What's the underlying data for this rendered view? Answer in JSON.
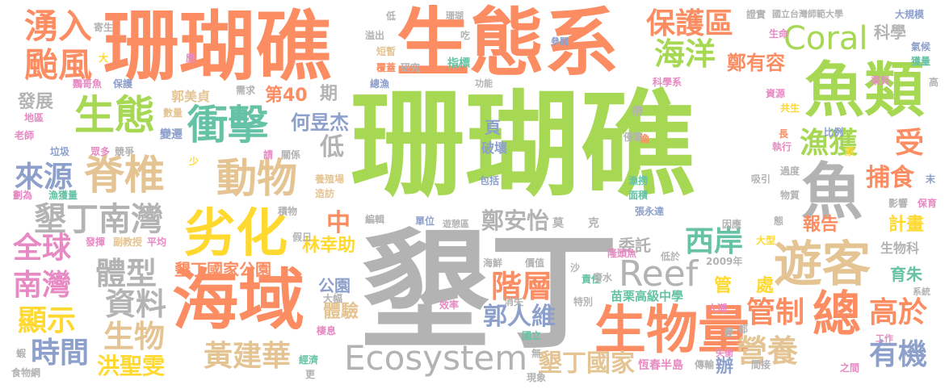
{
  "palette": {
    "green": "#a6d854",
    "orange": "#fc8d62",
    "gray": "#b3b3b3",
    "blue": "#8da0cb",
    "tan": "#e5c494",
    "pink": "#e78ac3",
    "yellow": "#ffd92f",
    "teal": "#66c2a5"
  },
  "words": [
    {
      "text": "珊瑚礁",
      "color": "green"
    },
    {
      "text": "墾丁",
      "color": "gray"
    },
    {
      "text": "珊瑚礁",
      "color": "orange"
    },
    {
      "text": "生態系",
      "color": "orange"
    },
    {
      "text": "海域",
      "color": "orange"
    },
    {
      "text": "魚類",
      "color": "green"
    },
    {
      "text": "劣化",
      "color": "yellow"
    },
    {
      "text": "生物量",
      "color": "orange"
    },
    {
      "text": "Ecosystem",
      "color": "gray"
    },
    {
      "text": "衝擊",
      "color": "teal"
    },
    {
      "text": "脊椎",
      "color": "tan"
    },
    {
      "text": "動物",
      "color": "tan"
    },
    {
      "text": "生態",
      "color": "green"
    },
    {
      "text": "Coral",
      "color": "green"
    },
    {
      "text": "Reef",
      "color": "gray"
    },
    {
      "text": "遊客",
      "color": "tan"
    },
    {
      "text": "總",
      "color": "orange"
    },
    {
      "text": "魚",
      "color": "gray"
    },
    {
      "text": "墾丁南灣",
      "color": "gray"
    },
    {
      "text": "湧入",
      "color": "orange"
    },
    {
      "text": "颱風",
      "color": "orange"
    },
    {
      "text": "保護區",
      "color": "orange"
    },
    {
      "text": "海洋",
      "color": "green"
    },
    {
      "text": "鄭有容",
      "color": "orange"
    },
    {
      "text": "科學",
      "color": "gray"
    },
    {
      "text": "來源",
      "color": "blue"
    },
    {
      "text": "全球",
      "color": "pink"
    },
    {
      "text": "南灣",
      "color": "pink"
    },
    {
      "text": "顯示",
      "color": "yellow"
    },
    {
      "text": "時間",
      "color": "blue"
    },
    {
      "text": "體型",
      "color": "gray"
    },
    {
      "text": "資料",
      "color": "gray"
    },
    {
      "text": "生物",
      "color": "tan"
    },
    {
      "text": "洪聖雯",
      "color": "yellow"
    },
    {
      "text": "黃建華",
      "color": "tan"
    },
    {
      "text": "階層",
      "color": "orange"
    },
    {
      "text": "郭人維",
      "color": "blue"
    },
    {
      "text": "管制",
      "color": "orange"
    },
    {
      "text": "營養",
      "color": "tan"
    },
    {
      "text": "高於",
      "color": "orange"
    },
    {
      "text": "有機",
      "color": "blue"
    },
    {
      "text": "漁獲",
      "color": "green"
    },
    {
      "text": "捕食",
      "color": "orange"
    },
    {
      "text": "西岸",
      "color": "teal"
    },
    {
      "text": "鄭安怡",
      "color": "gray"
    },
    {
      "text": "墾丁國家公園",
      "color": "orange"
    },
    {
      "text": "墾丁國家",
      "color": "tan"
    },
    {
      "text": "受",
      "color": "orange"
    },
    {
      "text": "中",
      "color": "orange"
    },
    {
      "text": "低",
      "color": "gray"
    },
    {
      "text": "何昱杰",
      "color": "blue"
    },
    {
      "text": "第40",
      "color": "orange"
    },
    {
      "text": "期",
      "color": "gray"
    },
    {
      "text": "發展",
      "color": "gray"
    },
    {
      "text": "報告",
      "color": "orange"
    },
    {
      "text": "計畫",
      "color": "yellow"
    },
    {
      "text": "育朱",
      "color": "teal"
    },
    {
      "text": "體驗",
      "color": "tan"
    },
    {
      "text": "林幸助",
      "color": "yellow"
    },
    {
      "text": "公園",
      "color": "blue"
    },
    {
      "text": "管",
      "color": "yellow"
    },
    {
      "text": "處",
      "color": "yellow"
    },
    {
      "text": "委託",
      "color": "gray"
    },
    {
      "text": "生物科",
      "color": "gray"
    },
    {
      "text": "苗栗高級中學",
      "color": "teal"
    },
    {
      "text": "頁",
      "color": "blue"
    },
    {
      "text": "辦",
      "color": "blue"
    },
    {
      "text": "郭美貞",
      "color": "tan"
    },
    {
      "text": "國立台灣師範大學",
      "color": "gray"
    },
    {
      "text": "大規模",
      "color": "blue"
    },
    {
      "text": "氣候",
      "color": "blue"
    },
    {
      "text": "獲量",
      "color": "teal"
    },
    {
      "text": "生命",
      "color": "pink"
    },
    {
      "text": "證實",
      "color": "gray"
    },
    {
      "text": "研究",
      "color": "gray"
    },
    {
      "text": "指標",
      "color": "teal"
    },
    {
      "text": "覆蓋",
      "color": "orange"
    },
    {
      "text": "珊瑚",
      "color": "gray"
    },
    {
      "text": "溢出",
      "color": "gray"
    },
    {
      "text": "短暫",
      "color": "tan"
    },
    {
      "text": "吃",
      "color": "gray"
    },
    {
      "text": "參閱",
      "color": "blue"
    },
    {
      "text": "低",
      "color": "gray"
    },
    {
      "text": "寄生",
      "color": "gray"
    },
    {
      "text": "鸚哥魚",
      "color": "pink"
    },
    {
      "text": "保護",
      "color": "blue"
    },
    {
      "text": "總漁",
      "color": "blue"
    },
    {
      "text": "功能",
      "color": "gray"
    },
    {
      "text": "科學系",
      "color": "pink"
    },
    {
      "text": "資源",
      "color": "pink"
    },
    {
      "text": "共生",
      "color": "yellow"
    },
    {
      "text": "渠貝",
      "color": "pink"
    },
    {
      "text": "高",
      "color": "gray"
    },
    {
      "text": "需求",
      "color": "gray"
    },
    {
      "text": "地區",
      "color": "pink"
    },
    {
      "text": "數量",
      "color": "tan"
    },
    {
      "text": "老師",
      "color": "pink"
    },
    {
      "text": "變遷",
      "color": "blue"
    },
    {
      "text": "垃圾",
      "color": "blue"
    },
    {
      "text": "眾多",
      "color": "pink"
    },
    {
      "text": "競爭",
      "color": "gray"
    },
    {
      "text": "關係",
      "color": "gray"
    },
    {
      "text": "帶",
      "color": "gray"
    },
    {
      "text": "侵襲",
      "color": "gray"
    },
    {
      "text": "破壞",
      "color": "blue"
    },
    {
      "text": "包括",
      "color": "blue"
    },
    {
      "text": "漁撈",
      "color": "teal"
    },
    {
      "text": "面積",
      "color": "teal"
    },
    {
      "text": "張永達",
      "color": "blue"
    },
    {
      "text": "比例",
      "color": "blue"
    },
    {
      "text": "執行",
      "color": "pink"
    },
    {
      "text": "吸引",
      "color": "gray"
    },
    {
      "text": "過度",
      "color": "gray"
    },
    {
      "text": "物質",
      "color": "gray"
    },
    {
      "text": "影響",
      "color": "gray"
    },
    {
      "text": "保育",
      "color": "pink"
    },
    {
      "text": "漁獲量",
      "color": "teal"
    },
    {
      "text": "劃為",
      "color": "pink"
    },
    {
      "text": "養殖場",
      "color": "tan"
    },
    {
      "text": "造訪",
      "color": "tan"
    },
    {
      "text": "積物",
      "color": "gray"
    },
    {
      "text": "編輯",
      "color": "gray"
    },
    {
      "text": "單位",
      "color": "blue"
    },
    {
      "text": "遊憩區",
      "color": "gray"
    },
    {
      "text": "因應",
      "color": "gray"
    },
    {
      "text": "大型",
      "color": "yellow"
    },
    {
      "text": "莫",
      "color": "gray"
    },
    {
      "text": "克",
      "color": "gray"
    },
    {
      "text": "假日",
      "color": "gray"
    },
    {
      "text": "發揮",
      "color": "pink"
    },
    {
      "text": "副教授",
      "color": "tan"
    },
    {
      "text": "平均",
      "color": "pink"
    },
    {
      "text": "海鮮",
      "color": "gray"
    },
    {
      "text": "價值",
      "color": "gray"
    },
    {
      "text": "責任",
      "color": "teal"
    },
    {
      "text": "隆頭魚",
      "color": "pink"
    },
    {
      "text": "低於",
      "color": "gray"
    },
    {
      "text": "2009年",
      "color": "gray"
    },
    {
      "text": "廢水",
      "color": "gray"
    },
    {
      "text": "沙",
      "color": "gray"
    },
    {
      "text": "特別",
      "color": "gray"
    },
    {
      "text": "消失",
      "color": "gray"
    },
    {
      "text": "大幅",
      "color": "gray"
    },
    {
      "text": "效率",
      "color": "pink"
    },
    {
      "text": "棲息",
      "color": "pink"
    },
    {
      "text": "國立",
      "color": "teal"
    },
    {
      "text": "豐",
      "color": "gray"
    },
    {
      "text": "都",
      "color": "gray"
    },
    {
      "text": "工作",
      "color": "pink"
    },
    {
      "text": "失衡",
      "color": "pink"
    },
    {
      "text": "系統",
      "color": "gray"
    },
    {
      "text": "人潮",
      "color": "pink"
    },
    {
      "text": "經濟",
      "color": "teal"
    },
    {
      "text": "更",
      "color": "gray"
    },
    {
      "text": "現象",
      "color": "gray"
    },
    {
      "text": "恆春半島",
      "color": "pink"
    },
    {
      "text": "傳輸",
      "color": "gray"
    },
    {
      "text": "間接",
      "color": "gray"
    },
    {
      "text": "之間",
      "color": "pink"
    },
    {
      "text": "蝦",
      "color": "gray"
    },
    {
      "text": "食物網",
      "color": "gray"
    },
    {
      "text": "無",
      "color": "gray"
    },
    {
      "text": "少",
      "color": "yellow"
    },
    {
      "text": "大",
      "color": "yellow"
    },
    {
      "text": "應",
      "color": "pink"
    },
    {
      "text": "請",
      "color": "pink"
    },
    {
      "text": "漁",
      "color": "orange"
    },
    {
      "text": "長",
      "color": "orange"
    },
    {
      "text": "原",
      "color": "yellow"
    },
    {
      "text": "末",
      "color": "blue"
    },
    {
      "text": "態",
      "color": "gray"
    }
  ]
}
